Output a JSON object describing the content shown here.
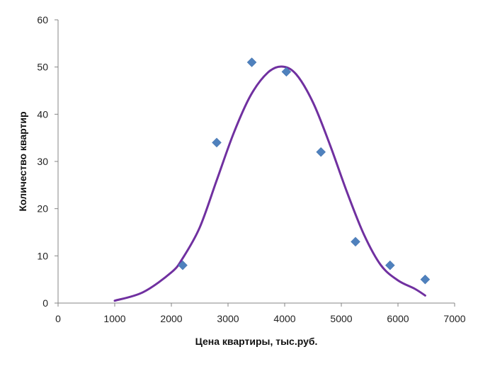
{
  "chart_data": {
    "type": "scatter",
    "xlabel": "Цена квартиры, тыс.руб.",
    "ylabel": "Количество квартир",
    "xlim": [
      0,
      7000
    ],
    "ylim": [
      0,
      60
    ],
    "x_ticks": [
      "0",
      "1000",
      "2000",
      "3000",
      "4000",
      "5000",
      "6000",
      "7000"
    ],
    "y_ticks": [
      "0",
      "10",
      "20",
      "30",
      "40",
      "50",
      "60"
    ],
    "grid": false,
    "legend": "none",
    "series": [
      {
        "kind": "scatter",
        "marker": "diamond",
        "color": "#4F81BD",
        "points": [
          {
            "x": 2200,
            "y": 8
          },
          {
            "x": 2800,
            "y": 34
          },
          {
            "x": 3420,
            "y": 51
          },
          {
            "x": 4030,
            "y": 49
          },
          {
            "x": 4640,
            "y": 32
          },
          {
            "x": 5250,
            "y": 13
          },
          {
            "x": 5860,
            "y": 8
          },
          {
            "x": 6480,
            "y": 5
          }
        ]
      },
      {
        "kind": "curve",
        "color": "#7030A0",
        "points": [
          {
            "x": 1000,
            "y": 0.5
          },
          {
            "x": 1500,
            "y": 2.3
          },
          {
            "x": 2000,
            "y": 6.5
          },
          {
            "x": 2200,
            "y": 9.5
          },
          {
            "x": 2500,
            "y": 16
          },
          {
            "x": 2800,
            "y": 26
          },
          {
            "x": 3100,
            "y": 36
          },
          {
            "x": 3400,
            "y": 44
          },
          {
            "x": 3700,
            "y": 48.8
          },
          {
            "x": 3950,
            "y": 50.1
          },
          {
            "x": 4200,
            "y": 48.5
          },
          {
            "x": 4500,
            "y": 42.5
          },
          {
            "x": 4800,
            "y": 33.5
          },
          {
            "x": 5100,
            "y": 23.5
          },
          {
            "x": 5400,
            "y": 14.5
          },
          {
            "x": 5700,
            "y": 8
          },
          {
            "x": 6000,
            "y": 4.8
          },
          {
            "x": 6300,
            "y": 3
          },
          {
            "x": 6480,
            "y": 1.6
          }
        ]
      }
    ]
  }
}
